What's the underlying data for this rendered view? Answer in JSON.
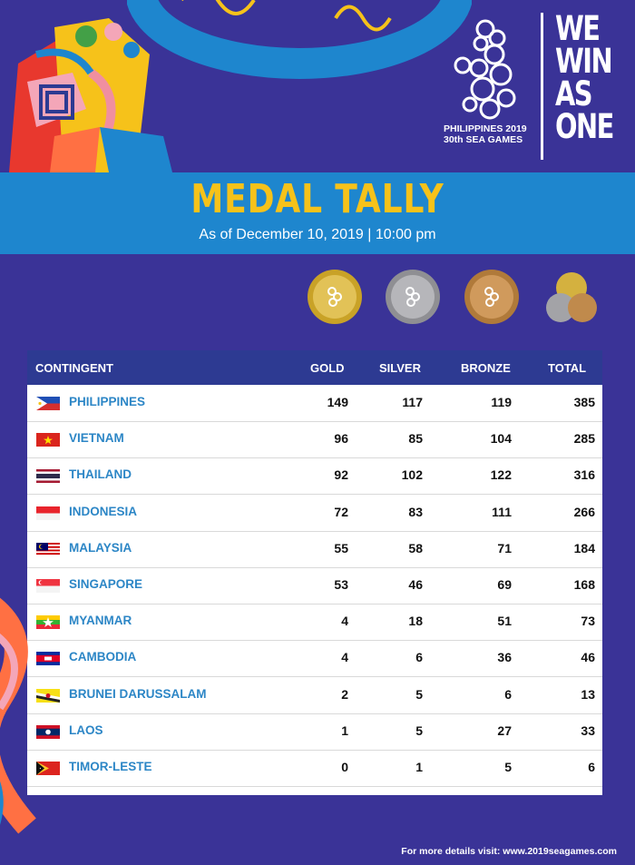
{
  "header": {
    "logo_caption_line1": "PHILIPPINES 2019",
    "logo_caption_line2": "30th SEA GAMES",
    "slogan": [
      "WE",
      "WIN",
      "AS",
      "ONE"
    ]
  },
  "banner": {
    "title": "MEDAL TALLY",
    "subtitle": "As of December 10, 2019 | 10:00 pm"
  },
  "medal_icons": [
    "gold-medal-icon",
    "silver-medal-icon",
    "bronze-medal-icon",
    "total-medals-icon"
  ],
  "table": {
    "columns": [
      "CONTINGENT",
      "GOLD",
      "SILVER",
      "BRONZE",
      "TOTAL"
    ],
    "rows": [
      {
        "country": "PHILIPPINES",
        "flag": "philippines-flag-icon",
        "gold": "149",
        "silver": "117",
        "bronze": "119",
        "total": "385"
      },
      {
        "country": "VIETNAM",
        "flag": "vietnam-flag-icon",
        "gold": "96",
        "silver": "85",
        "bronze": "104",
        "total": "285"
      },
      {
        "country": "THAILAND",
        "flag": "thailand-flag-icon",
        "gold": "92",
        "silver": "102",
        "bronze": "122",
        "total": "316"
      },
      {
        "country": "INDONESIA",
        "flag": "indonesia-flag-icon",
        "gold": "72",
        "silver": "83",
        "bronze": "111",
        "total": "266"
      },
      {
        "country": "MALAYSIA",
        "flag": "malaysia-flag-icon",
        "gold": "55",
        "silver": "58",
        "bronze": "71",
        "total": "184"
      },
      {
        "country": "SINGAPORE",
        "flag": "singapore-flag-icon",
        "gold": "53",
        "silver": "46",
        "bronze": "69",
        "total": "168"
      },
      {
        "country": "MYANMAR",
        "flag": "myanmar-flag-icon",
        "gold": "4",
        "silver": "18",
        "bronze": "51",
        "total": "73"
      },
      {
        "country": "CAMBODIA",
        "flag": "cambodia-flag-icon",
        "gold": "4",
        "silver": "6",
        "bronze": "36",
        "total": "46"
      },
      {
        "country": "BRUNEI DARUSSALAM",
        "flag": "brunei-flag-icon",
        "gold": "2",
        "silver": "5",
        "bronze": "6",
        "total": "13"
      },
      {
        "country": "LAOS",
        "flag": "laos-flag-icon",
        "gold": "1",
        "silver": "5",
        "bronze": "27",
        "total": "33"
      },
      {
        "country": "TIMOR-LESTE",
        "flag": "timor-leste-flag-icon",
        "gold": "0",
        "silver": "1",
        "bronze": "5",
        "total": "6"
      }
    ]
  },
  "footer": {
    "text": "For more details visit: www.2019seagames.com"
  },
  "colors": {
    "background": "#3a3397",
    "banner": "#1e86ce",
    "title": "#f6c21a",
    "table_header": "#2d3a92",
    "country_text": "#2c86c6"
  }
}
